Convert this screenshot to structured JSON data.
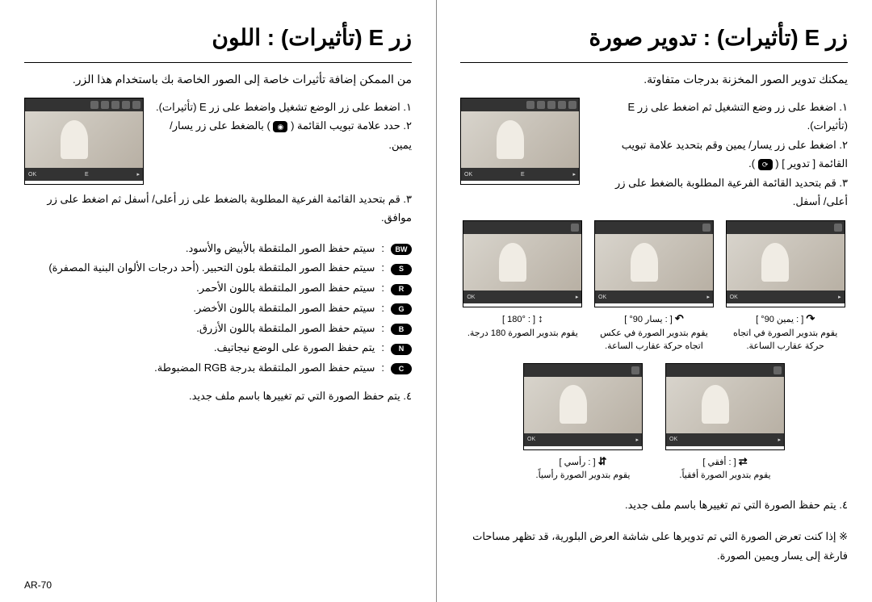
{
  "pageNumber": "AR-70",
  "right": {
    "title": "زر E (تأثيرات) : تدوير صورة",
    "intro": "يمكنك تدوير الصور المخزنة بدرجات متفاوتة.",
    "step1": "١. اضغط على زر وضع التشغيل ثم اضغط على زر E (تأثيرات).",
    "step2": "٢. اضغط على زر يسار/ يمين وقم بتحديد علامة تبويب القائمة [ تدوير ] ( ",
    "step2_tail": " ).",
    "step3": "٣. قم بتحديد القائمة الفرعية المطلوبة بالضغط على زر أعلى/ أسفل.",
    "rot": [
      {
        "sym": "↷",
        "label": ": يمين 90°",
        "desc": "يقوم بتدوير الصورة في اتجاه حركة عقارب الساعة."
      },
      {
        "sym": "↶",
        "label": ": يسار 90°",
        "desc": "يقوم بتدوير الصورة في عكس اتجاه حركة عقارب الساعة."
      },
      {
        "sym": "↕",
        "label": ": 180°",
        "desc": "يقوم بتدوير الصورة 180 درجة."
      }
    ],
    "rot2": [
      {
        "sym": "⇄",
        "label": ": أفقي",
        "desc": "يقوم بتدوير الصورة أفقياً."
      },
      {
        "sym": "⇵",
        "label": ": رأسي",
        "desc": "يقوم بتدوير الصورة رأسياً."
      }
    ],
    "step4": "٤. يتم حفظ الصورة التي تم تغييرها باسم ملف جديد.",
    "note": "※ إذا كنت تعرض الصورة التي تم تدويرها على شاشة العرض البلورية، قد تظهر مساحات فارغة إلى يسار ويمين الصورة."
  },
  "left": {
    "title": "زر E (تأثيرات) : اللون",
    "intro": "من الممكن إضافة تأثيرات خاصة إلى الصور الخاصة بك باستخدام هذا الزر.",
    "step1": "١. اضغط على زر الوضع تشغيل واضغط على زر E (تأثيرات).",
    "step2": "٢. حدد علامة تبويب القائمة ( ",
    "step2_tail": " ) بالضغط على زر يسار/يمين.",
    "step3": "٣. قم بتحديد القائمة الفرعية المطلوبة بالضغط على زر أعلى/ أسفل ثم اضغط على زر موافق.",
    "effects": [
      {
        "icon": "BW",
        "text": "سيتم حفظ الصور الملتقطة بالأبيض والأسود."
      },
      {
        "icon": "S",
        "text": "سيتم حفظ الصور الملتقطة بلون التحبير. (أحد درجات الألوان البنية المصفرة)"
      },
      {
        "icon": "R",
        "text": "سيتم حفظ الصور الملتقطة باللون الأحمر."
      },
      {
        "icon": "G",
        "text": "سيتم حفظ الصور الملتقطة باللون الأخضر."
      },
      {
        "icon": "B",
        "text": "سيتم حفظ الصور الملتقطة باللون الأزرق."
      },
      {
        "icon": "N",
        "text": "يتم حفظ الصورة على الوضع نيجاتيف."
      },
      {
        "icon": "C",
        "text": "سيتم حفظ الصور الملتقطة بدرجة RGB المضبوطة."
      }
    ],
    "step4": "٤. يتم حفظ الصورة التي تم تغييرها باسم ملف جديد."
  }
}
